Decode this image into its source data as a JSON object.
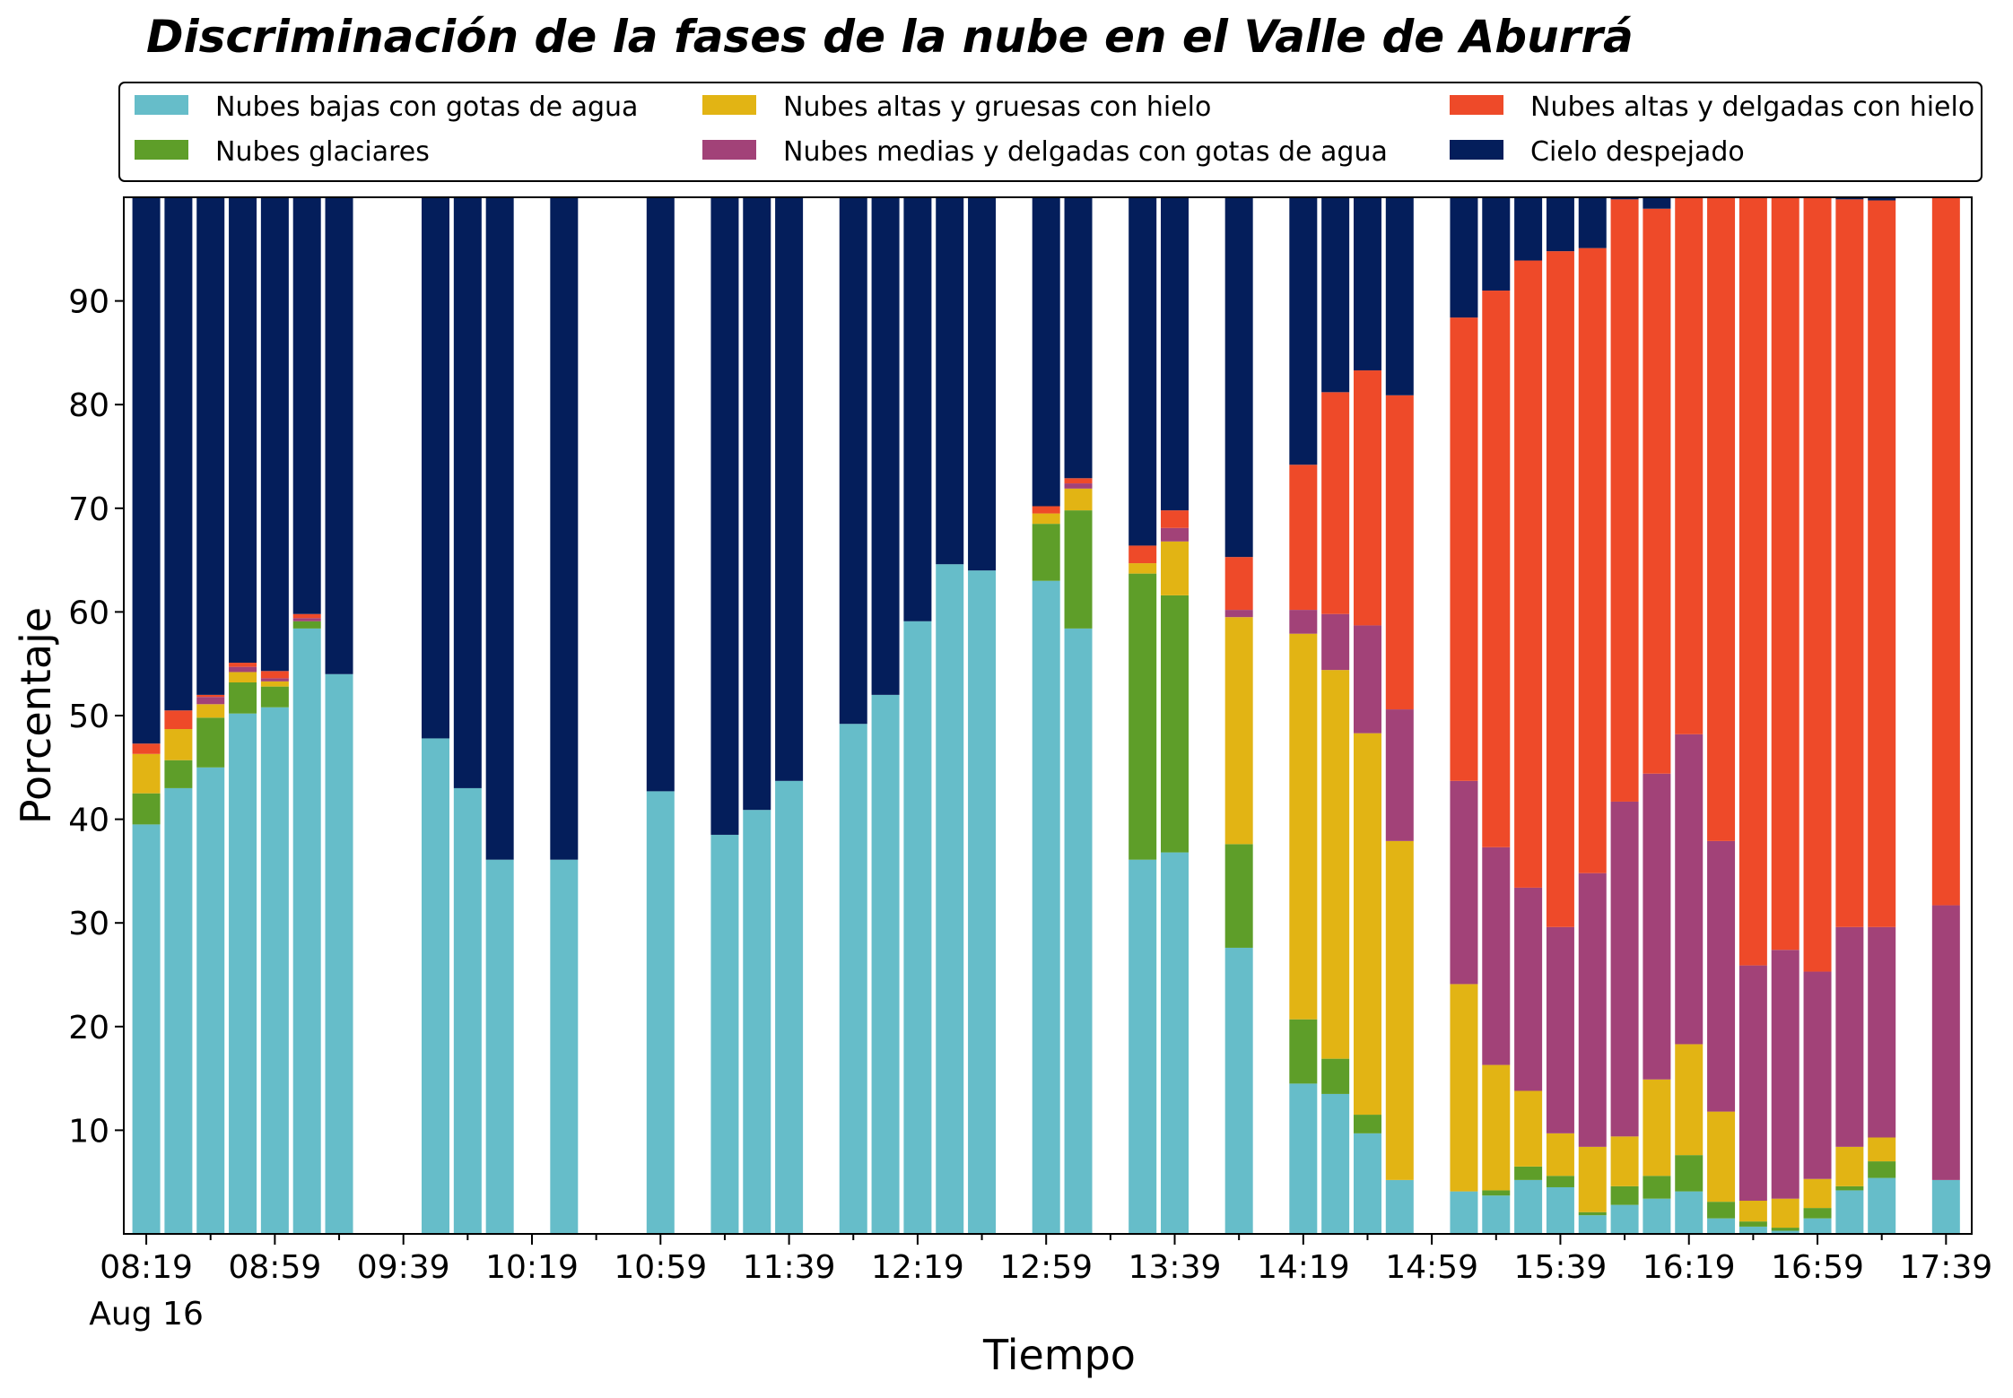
{
  "chart_data": {
    "type": "bar",
    "stacked": true,
    "title": "Discriminación de la fases de la nube en el Valle de Aburrá",
    "xlabel": "Tiempo",
    "ylabel": "Porcentaje",
    "ylim": [
      0,
      100
    ],
    "yticks": [
      10,
      20,
      30,
      40,
      50,
      60,
      70,
      80,
      90
    ],
    "x_tick_labels": [
      "08:19",
      "08:59",
      "09:39",
      "10:19",
      "10:59",
      "11:39",
      "12:19",
      "12:59",
      "13:39",
      "14:19",
      "14:59",
      "15:39",
      "16:19",
      "16:59",
      "17:39"
    ],
    "x_date_label": "Aug 16",
    "legend_position": "top",
    "legend_labels": [
      "Nubes bajas con gotas de agua",
      "Nubes altas y gruesas con hielo",
      "Nubes altas y delgadas con hielo",
      "Nubes glaciares",
      "Nubes medias y delgadas con gotas de agua",
      "Cielo despejado"
    ],
    "series": [
      {
        "name": "Nubes bajas con gotas de agua",
        "color": "#66bdc9"
      },
      {
        "name": "Nubes glaciares",
        "color": "#5e9e29"
      },
      {
        "name": "Nubes altas y gruesas con hielo",
        "color": "#e2b414"
      },
      {
        "name": "Nubes medias y delgadas con gotas de agua",
        "color": "#a24278"
      },
      {
        "name": "Nubes altas y delgadas con hielo",
        "color": "#ee4a29"
      },
      {
        "name": "Cielo despejado",
        "color": "#041e5b"
      }
    ],
    "bars": [
      {
        "time": "08:19",
        "values": [
          39.5,
          3.0,
          3.8,
          0.0,
          1.0,
          52.7
        ]
      },
      {
        "time": "08:29",
        "values": [
          43.0,
          2.7,
          3.0,
          0.0,
          1.8,
          49.5
        ]
      },
      {
        "time": "08:39",
        "values": [
          45.0,
          4.8,
          1.3,
          0.7,
          0.2,
          48.0
        ]
      },
      {
        "time": "08:49",
        "values": [
          50.2,
          3.0,
          1.0,
          0.5,
          0.4,
          44.9
        ]
      },
      {
        "time": "08:59",
        "values": [
          50.8,
          2.0,
          0.5,
          0.3,
          0.7,
          45.7
        ]
      },
      {
        "time": "09:09",
        "values": [
          58.4,
          0.7,
          0.0,
          0.3,
          0.4,
          40.2
        ]
      },
      {
        "time": "09:19",
        "values": [
          54.0,
          0.0,
          0.0,
          0.0,
          0.0,
          46.0
        ]
      },
      {
        "time": "09:49",
        "values": [
          47.8,
          0.0,
          0.0,
          0.0,
          0.0,
          52.2
        ]
      },
      {
        "time": "09:59",
        "values": [
          43.0,
          0.0,
          0.0,
          0.0,
          0.0,
          57.0
        ]
      },
      {
        "time": "10:09",
        "values": [
          36.1,
          0.0,
          0.0,
          0.0,
          0.0,
          63.9
        ]
      },
      {
        "time": "10:29",
        "values": [
          36.1,
          0.0,
          0.0,
          0.0,
          0.0,
          63.9
        ]
      },
      {
        "time": "10:59",
        "values": [
          42.7,
          0.0,
          0.0,
          0.0,
          0.0,
          57.3
        ]
      },
      {
        "time": "11:19",
        "values": [
          38.5,
          0.0,
          0.0,
          0.0,
          0.0,
          61.5
        ]
      },
      {
        "time": "11:29",
        "values": [
          40.9,
          0.0,
          0.0,
          0.0,
          0.0,
          59.1
        ]
      },
      {
        "time": "11:39",
        "values": [
          43.7,
          0.0,
          0.0,
          0.0,
          0.0,
          56.3
        ]
      },
      {
        "time": "11:59",
        "values": [
          49.2,
          0.0,
          0.0,
          0.0,
          0.0,
          50.8
        ]
      },
      {
        "time": "12:09",
        "values": [
          52.0,
          0.0,
          0.0,
          0.0,
          0.0,
          48.0
        ]
      },
      {
        "time": "12:19",
        "values": [
          59.1,
          0.0,
          0.0,
          0.0,
          0.0,
          40.9
        ]
      },
      {
        "time": "12:29",
        "values": [
          64.6,
          0.0,
          0.0,
          0.0,
          0.0,
          35.4
        ]
      },
      {
        "time": "12:39",
        "values": [
          64.0,
          0.0,
          0.0,
          0.0,
          0.0,
          36.0
        ]
      },
      {
        "time": "12:59",
        "values": [
          63.0,
          5.5,
          1.0,
          0.0,
          0.7,
          29.8
        ]
      },
      {
        "time": "13:09",
        "values": [
          58.4,
          11.4,
          2.1,
          0.5,
          0.5,
          27.1
        ]
      },
      {
        "time": "13:29",
        "values": [
          36.1,
          27.6,
          1.0,
          0.0,
          1.7,
          33.6
        ]
      },
      {
        "time": "13:39",
        "values": [
          36.8,
          24.8,
          5.2,
          1.3,
          1.7,
          30.2
        ]
      },
      {
        "time": "13:59",
        "values": [
          27.6,
          10.0,
          21.9,
          0.7,
          5.1,
          34.7
        ]
      },
      {
        "time": "14:19",
        "values": [
          14.5,
          6.2,
          37.2,
          2.3,
          14.0,
          25.8
        ]
      },
      {
        "time": "14:29",
        "values": [
          13.5,
          3.4,
          37.5,
          5.4,
          21.4,
          18.8
        ]
      },
      {
        "time": "14:39",
        "values": [
          9.7,
          1.8,
          36.8,
          10.4,
          24.6,
          16.7
        ]
      },
      {
        "time": "14:49",
        "values": [
          5.2,
          0.0,
          32.7,
          12.7,
          30.3,
          19.1
        ]
      },
      {
        "time": "15:09",
        "values": [
          4.1,
          0.0,
          20.0,
          19.6,
          44.7,
          11.6
        ]
      },
      {
        "time": "15:19",
        "values": [
          3.7,
          0.5,
          12.1,
          21.0,
          53.7,
          9.0
        ]
      },
      {
        "time": "15:29",
        "values": [
          5.2,
          1.3,
          7.3,
          19.6,
          60.5,
          6.1
        ]
      },
      {
        "time": "15:39",
        "values": [
          4.5,
          1.1,
          4.1,
          19.9,
          65.2,
          5.2
        ]
      },
      {
        "time": "15:49",
        "values": [
          1.8,
          0.3,
          6.3,
          26.4,
          60.3,
          4.9
        ]
      },
      {
        "time": "15:59",
        "values": [
          2.8,
          1.8,
          4.8,
          32.3,
          58.1,
          0.2
        ]
      },
      {
        "time": "16:09",
        "values": [
          3.4,
          2.2,
          9.3,
          29.5,
          54.5,
          1.1
        ]
      },
      {
        "time": "16:19",
        "values": [
          4.1,
          3.5,
          10.7,
          29.9,
          52.0,
          -0.2
        ]
      },
      {
        "time": "16:29",
        "values": [
          1.5,
          1.6,
          8.7,
          26.1,
          62.3,
          -0.2
        ]
      },
      {
        "time": "16:39",
        "values": [
          0.7,
          0.5,
          2.0,
          22.7,
          74.3,
          -0.2
        ]
      },
      {
        "time": "16:49",
        "values": [
          0.3,
          0.3,
          2.8,
          24.0,
          72.8,
          -0.2
        ]
      },
      {
        "time": "16:59",
        "values": [
          1.5,
          1.0,
          2.8,
          20.0,
          74.9,
          -0.2
        ]
      },
      {
        "time": "17:09",
        "values": [
          4.2,
          0.4,
          3.8,
          21.2,
          70.2,
          0.2
        ]
      },
      {
        "time": "17:19",
        "values": [
          5.4,
          1.6,
          2.3,
          20.3,
          70.1,
          0.3
        ]
      },
      {
        "time": "17:39",
        "values": [
          5.2,
          0.0,
          0.0,
          26.5,
          68.3,
          0.0
        ]
      }
    ]
  }
}
